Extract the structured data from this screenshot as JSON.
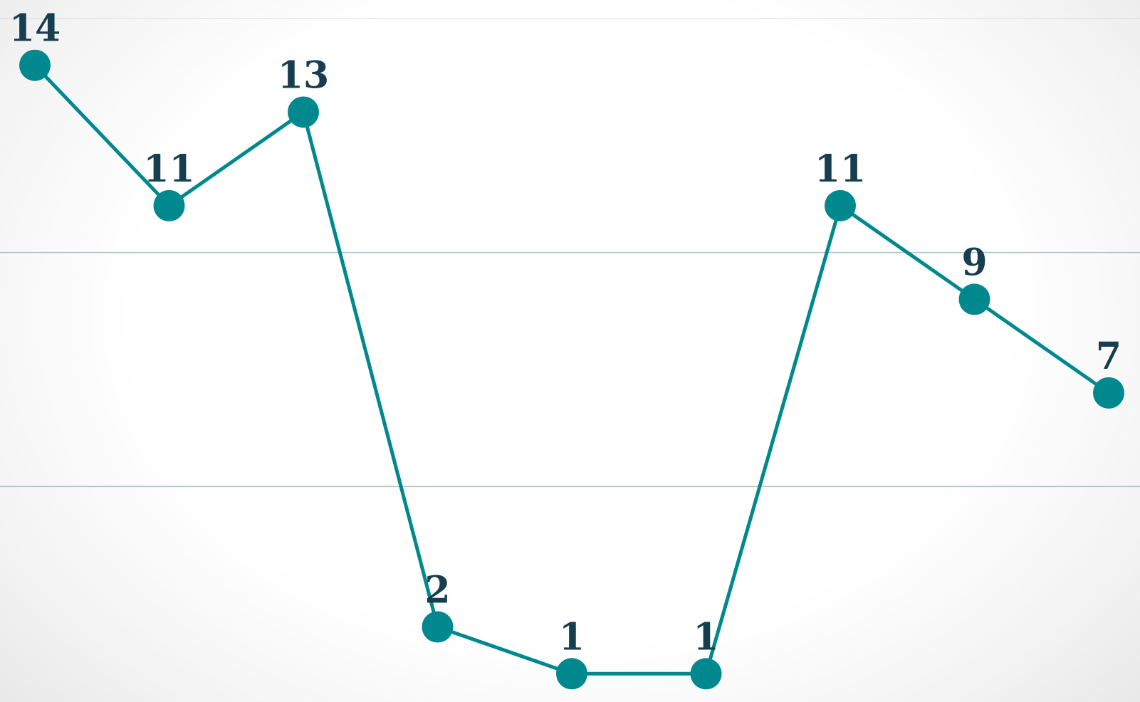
{
  "chart_data": {
    "type": "line",
    "title": "",
    "xlabel": "",
    "ylabel": "",
    "categories": [
      "",
      "",
      "",
      "",
      "",
      "",
      "",
      "",
      ""
    ],
    "series": [
      {
        "values": [
          14,
          11,
          13,
          2,
          1,
          1,
          11,
          9,
          7
        ],
        "labels": [
          "14",
          "11",
          "13",
          "2",
          "1",
          "1",
          "11",
          "9",
          "7"
        ]
      }
    ],
    "ylim": [
      0,
      15
    ],
    "grid": true,
    "legend": "none",
    "colors": {
      "line": "#00888f",
      "marker": "#00888f",
      "label": "#163e4f",
      "grid": "#a9c2c4"
    }
  }
}
